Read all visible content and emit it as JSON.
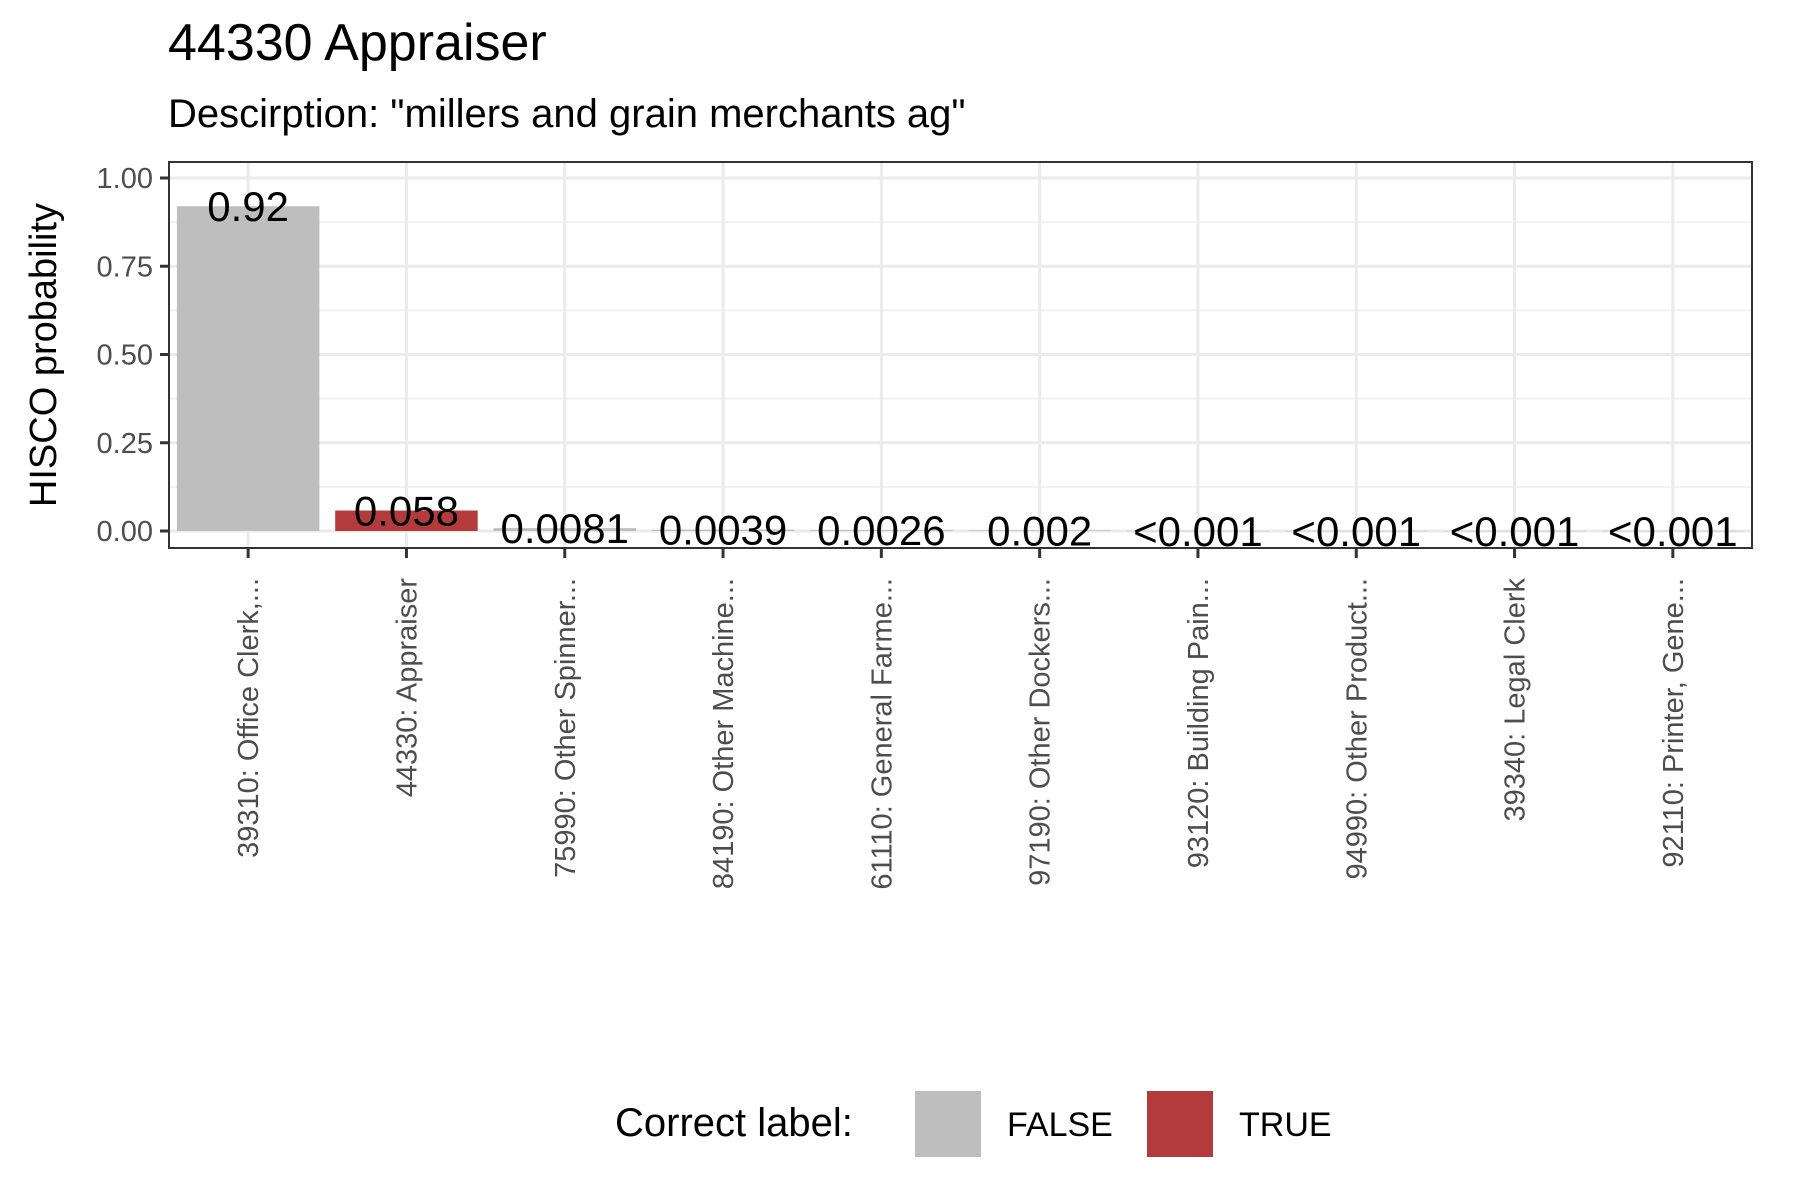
{
  "chart_data": {
    "type": "bar",
    "title": "44330 Appraiser",
    "subtitle": "Descirption: \"millers and grain merchants ag\"",
    "xlabel": "",
    "ylabel": "HISCO probability",
    "ylim": [
      0,
      1.05
    ],
    "y_ticks": [
      "0.00",
      "0.25",
      "0.50",
      "0.75",
      "1.00"
    ],
    "grid": true,
    "categories": [
      "39310: Office Clerk,...",
      "44330: Appraiser",
      "75990: Other Spinner...",
      "84190: Other Machine...",
      "61110: General Farme...",
      "97190: Other Dockers...",
      "93120: Building Pain...",
      "94990: Other Product...",
      "39340: Legal Clerk",
      "92110: Printer, Gene..."
    ],
    "values": [
      0.92,
      0.058,
      0.0081,
      0.0039,
      0.0026,
      0.002,
      0.0005,
      0.0005,
      0.0005,
      0.0005
    ],
    "data_labels": [
      "0.92",
      "0.058",
      "0.0081",
      "0.0039",
      "0.0026",
      "0.002",
      "<0.001",
      "<0.001",
      "<0.001",
      "<0.001"
    ],
    "correct": [
      "FALSE",
      "TRUE",
      "FALSE",
      "FALSE",
      "FALSE",
      "FALSE",
      "FALSE",
      "FALSE",
      "FALSE",
      "FALSE"
    ],
    "legend": {
      "title": "Correct label:",
      "position": "bottom",
      "items": [
        {
          "label": "FALSE",
          "color": "#bebebe"
        },
        {
          "label": "TRUE",
          "color": "#b33b3b"
        }
      ]
    }
  }
}
